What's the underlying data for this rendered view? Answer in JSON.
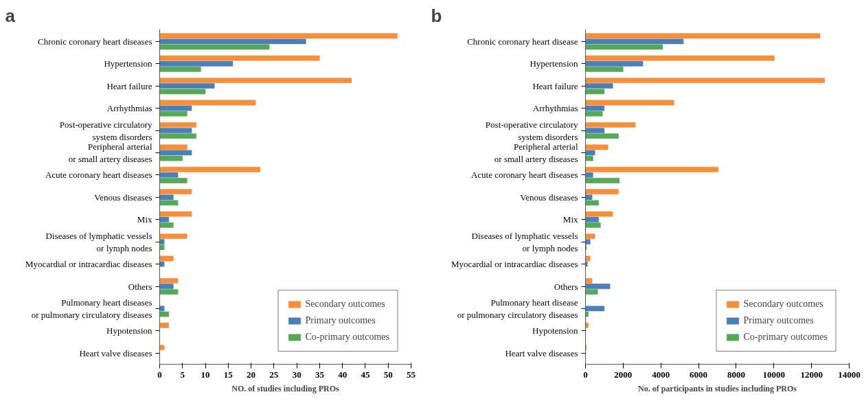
{
  "chart_data": [
    {
      "type": "bar",
      "title": "a",
      "orientation": "horizontal",
      "xlabel": "NO. of studies including PROs",
      "categories": [
        "Chronic coronary heart diseases",
        "Hypertension",
        "Heart failure",
        "Arrhythmias",
        "Post-operative circulatory\nsystem disorders",
        "Peripheral arterial\nor small artery diseases",
        "Acute coronary heart diseases",
        "Venous diseases",
        "Mix",
        "Diseases of lymphatic vessels\nor lymph nodes",
        "Myocardial or intracardiac diseases",
        "Others",
        "Pulmonary heart diseases\nor pulmonary circulatory diseases",
        "Hypotension",
        "Heart valve diseases"
      ],
      "series": [
        {
          "name": "Secondary outcomes",
          "color": "#f58f3c",
          "values": [
            52,
            35,
            42,
            21,
            8,
            6,
            22,
            7,
            7,
            6,
            3,
            4,
            0,
            2,
            1
          ]
        },
        {
          "name": "Primary outcomes",
          "color": "#4a7fba",
          "values": [
            32,
            16,
            12,
            7,
            7,
            7,
            4,
            3,
            2,
            1,
            1,
            3,
            1,
            0,
            0
          ]
        },
        {
          "name": "Co-primary outcomes",
          "color": "#55a858",
          "values": [
            24,
            9,
            10,
            6,
            8,
            5,
            6,
            4,
            3,
            1,
            0,
            4,
            2,
            0,
            0
          ]
        }
      ],
      "xlim": [
        0,
        55
      ],
      "xticks": [
        0,
        5,
        10,
        15,
        20,
        25,
        30,
        35,
        40,
        45,
        50,
        55
      ],
      "grid": false,
      "legend": "bottom right"
    },
    {
      "type": "bar",
      "title": "b",
      "orientation": "horizontal",
      "xlabel": "No. of participants in studies including PROs",
      "categories": [
        "Chronic coronary heart disease",
        "Hypertension",
        "Heart failure",
        "Arrhythmias",
        "Post-operative circulatory\nsystem disorders",
        "Peripheral arterial\nor small artery diseases",
        "Acute coronary heart diseases",
        "Venous diseases",
        "Mix",
        "Diseases of lymphatic vessels\nor lymph nodes",
        "Myocardial or intracardiac diseases",
        "Others",
        "Pulmonary heart disease\nor pulmonary circulatory diseases",
        "Hypotension",
        "Heart valve diseases"
      ],
      "series": [
        {
          "name": "Secondary outcomes",
          "color": "#f58f3c",
          "values": [
            12450,
            10030,
            12700,
            4700,
            2650,
            1200,
            7050,
            1750,
            1450,
            500,
            250,
            350,
            0,
            150,
            50
          ]
        },
        {
          "name": "Primary outcomes",
          "color": "#4a7fba",
          "values": [
            5200,
            3050,
            1450,
            1000,
            1000,
            500,
            400,
            350,
            700,
            250,
            100,
            1300,
            1000,
            0,
            0
          ]
        },
        {
          "name": "Co-primary outcomes",
          "color": "#55a858",
          "values": [
            4100,
            2000,
            1000,
            900,
            1750,
            400,
            1800,
            700,
            800,
            50,
            0,
            650,
            150,
            0,
            0
          ]
        }
      ],
      "xlim": [
        0,
        14000
      ],
      "xticks": [
        0,
        2000,
        4000,
        6000,
        8000,
        10000,
        12000,
        14000
      ],
      "grid": false,
      "legend": "bottom right"
    }
  ]
}
